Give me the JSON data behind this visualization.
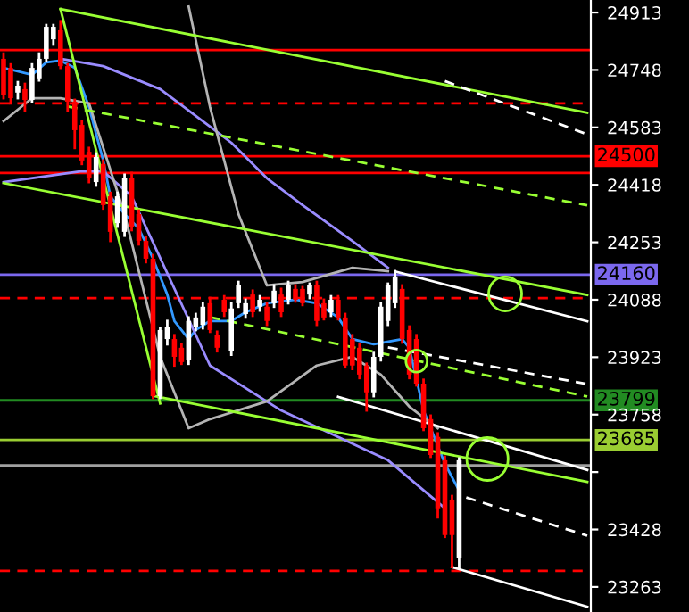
{
  "chart_data": {
    "type": "candlestick",
    "categories": [
      null,
      null,
      null,
      null,
      null,
      null,
      null,
      null,
      null,
      null,
      null,
      null,
      null,
      null,
      null,
      null,
      null,
      null,
      null,
      null,
      null,
      null,
      null,
      null,
      null,
      null,
      null,
      null,
      null,
      null,
      null,
      null,
      null,
      null,
      null,
      null,
      null,
      null,
      null,
      null,
      null,
      null,
      null,
      null,
      null,
      null,
      null,
      null,
      null,
      null,
      null,
      null,
      null,
      null,
      null,
      null,
      null,
      null,
      null,
      null,
      null,
      null,
      null,
      null,
      null,
      null,
      null,
      null,
      null,
      null,
      null,
      null,
      null,
      null,
      null,
      null,
      null,
      null,
      null,
      null,
      null,
      null,
      null
    ],
    "ohlc": [
      [
        24780,
        24795,
        24667,
        24677
      ],
      [
        24754,
        24764,
        24652,
        24667
      ],
      [
        24683,
        24713,
        24667,
        24703
      ],
      [
        24693,
        24708,
        24631,
        24662
      ],
      [
        24662,
        24764,
        24657,
        24754
      ],
      [
        24724,
        24795,
        24718,
        24780
      ],
      [
        24780,
        24877,
        24775,
        24872
      ],
      [
        24836,
        24877,
        24821,
        24872
      ],
      [
        24862,
        24888,
        24754,
        24759
      ],
      [
        24759,
        24764,
        24631,
        24657
      ],
      [
        24657,
        24662,
        24524,
        24575
      ],
      [
        24590,
        24600,
        24478,
        24488
      ],
      [
        24513,
        24524,
        24426,
        24437
      ],
      [
        24426,
        24508,
        24416,
        24498
      ],
      [
        24478,
        24488,
        24350,
        24360
      ],
      [
        24385,
        24395,
        24257,
        24283
      ],
      [
        24308,
        24395,
        24298,
        24385
      ],
      [
        24283,
        24447,
        24272,
        24437
      ],
      [
        24437,
        24452,
        24288,
        24298
      ],
      [
        24334,
        24344,
        24247,
        24257
      ],
      [
        24257,
        24267,
        24196,
        24206
      ],
      [
        24206,
        24216,
        23806,
        23811
      ],
      [
        23811,
        24006,
        23806,
        24001
      ],
      [
        23975,
        24027,
        23960,
        24011
      ],
      [
        23975,
        23986,
        23899,
        23924
      ],
      [
        23950,
        23960,
        23904,
        23909
      ],
      [
        23914,
        24037,
        23904,
        24027
      ],
      [
        24011,
        24047,
        24001,
        24037
      ],
      [
        24016,
        24078,
        24006,
        24068
      ],
      [
        24078,
        24093,
        23996,
        24001
      ],
      [
        23986,
        23996,
        23940,
        23950
      ],
      [
        24088,
        24098,
        24042,
        24052
      ],
      [
        23940,
        24078,
        23930,
        24063
      ],
      [
        24078,
        24139,
        24068,
        24129
      ],
      [
        24047,
        24088,
        24037,
        24078
      ],
      [
        24103,
        24114,
        24042,
        24052
      ],
      [
        24068,
        24098,
        24057,
        24088
      ],
      [
        24068,
        24078,
        24016,
        24027
      ],
      [
        24078,
        24129,
        24068,
        24114
      ],
      [
        24103,
        24119,
        24042,
        24052
      ],
      [
        24088,
        24139,
        24078,
        24129
      ],
      [
        24119,
        24129,
        24083,
        24088
      ],
      [
        24119,
        24124,
        24073,
        24078
      ],
      [
        24103,
        24134,
        24093,
        24129
      ],
      [
        24129,
        24139,
        24016,
        24027
      ],
      [
        24078,
        24088,
        24032,
        24037
      ],
      [
        24052,
        24098,
        24042,
        24088
      ],
      [
        24088,
        24098,
        24032,
        24037
      ],
      [
        24037,
        24047,
        23894,
        23899
      ],
      [
        23975,
        23986,
        23889,
        23899
      ],
      [
        23950,
        23960,
        23863,
        23873
      ],
      [
        23899,
        23904,
        23770,
        23822
      ],
      [
        23822,
        23935,
        23811,
        23924
      ],
      [
        23924,
        24078,
        23914,
        24068
      ],
      [
        24027,
        24134,
        24016,
        24129
      ],
      [
        24078,
        24170,
        24068,
        24155
      ],
      [
        24119,
        24129,
        23965,
        23975
      ],
      [
        24001,
        24011,
        23863,
        23873
      ],
      [
        23975,
        23986,
        23842,
        23847
      ],
      [
        23847,
        23858,
        23714,
        23719
      ],
      [
        23745,
        23755,
        23637,
        23642
      ],
      [
        23694,
        23704,
        23463,
        23489
      ],
      [
        23627,
        23637,
        23407,
        23412
      ],
      [
        23514,
        23524,
        23320,
        23412
      ],
      [
        23345,
        23632,
        23320,
        23627
      ],
      null,
      null,
      null,
      null,
      null,
      null,
      null,
      null,
      null,
      null,
      null,
      null,
      null,
      null,
      null,
      null,
      null,
      null
    ],
    "colors": [
      "#ff0000",
      "#ff0000",
      "#ffffff",
      "#ff0000",
      "#ffffff",
      "#ffffff",
      "#ffffff",
      "#ffffff",
      "#ff0000",
      "#ff0000",
      "#ff0000",
      "#ff0000",
      "#ff0000",
      "#ffffff",
      "#ff0000",
      "#ff0000",
      "#ffffff",
      "#ffffff",
      "#ff0000",
      "#ff0000",
      "#ff0000",
      "#ff0000",
      "#ffffff",
      "#ffffff",
      "#ff0000",
      "#ff0000",
      "#ffffff",
      "#ffffff",
      "#ffffff",
      "#ff0000",
      "#ff0000",
      "#ff0000",
      "#ffffff",
      "#ffffff",
      "#ffffff",
      "#ff0000",
      "#ffffff",
      "#ff0000",
      "#ffffff",
      "#ff0000",
      "#ffffff",
      "#ff0000",
      "#ff0000",
      "#ffffff",
      "#ff0000",
      "#ff0000",
      "#ffffff",
      "#ff0000",
      "#ff0000",
      "#ff0000",
      "#ff0000",
      "#ff0000",
      "#ffffff",
      "#ffffff",
      "#ffffff",
      "#ffffff",
      "#ff0000",
      "#ff0000",
      "#ff0000",
      "#ff0000",
      "#ff0000",
      "#ff0000",
      "#ff0000",
      "#ff0000",
      "#ffffff",
      null,
      null,
      null,
      null,
      null,
      null,
      null,
      null,
      null,
      null,
      null,
      null,
      null,
      null,
      null,
      null,
      null,
      null
    ],
    "series": [
      {
        "type": "line",
        "color": "#3399ff",
        "values": [
          24754,
          null,
          null,
          null,
          24734,
          null,
          24770,
          null,
          24775,
          null,
          24754,
          null,
          24642,
          null,
          24488,
          24385,
          null,
          24334,
          null,
          24293,
          null,
          24206,
          null,
          24103,
          24027,
          null,
          23975,
          24001,
          null,
          24027,
          null,
          null,
          24027,
          null,
          24052,
          null,
          null,
          24078,
          null,
          null,
          null,
          24088,
          null,
          null,
          24078,
          null,
          null,
          24037,
          null,
          23975,
          null,
          null,
          23960,
          null,
          null,
          null,
          23975,
          23950,
          null,
          23770,
          null,
          null,
          23617,
          null,
          23540,
          null,
          null,
          null,
          null,
          null,
          null,
          null,
          null,
          null,
          null,
          null,
          null,
          null,
          null,
          null,
          null,
          null,
          null
        ]
      },
      {
        "type": "line",
        "color": "#9a8cff",
        "values": [
          null,
          null,
          null,
          null,
          null,
          null,
          null,
          null,
          24780,
          null,
          null,
          null,
          null,
          null,
          24759,
          null,
          null,
          null,
          null,
          null,
          null,
          null,
          24693,
          null,
          null,
          null,
          null,
          24616,
          null,
          null,
          null,
          null,
          24539,
          null,
          null,
          null,
          null,
          24437,
          null,
          null,
          null,
          null,
          24360,
          null,
          null,
          null,
          null,
          null,
          null,
          24257,
          null,
          null,
          null,
          null,
          24180,
          null,
          null,
          null,
          null,
          null,
          null,
          null,
          null,
          null,
          null,
          null,
          null,
          null,
          null,
          null,
          null,
          null,
          null,
          null,
          null,
          null,
          null,
          null,
          null,
          null,
          null,
          null,
          null
        ]
      },
      {
        "type": "line",
        "color": "#9a8cff",
        "values": [
          24426,
          null,
          null,
          null,
          null,
          null,
          null,
          null,
          null,
          null,
          null,
          24457,
          null,
          null,
          24457,
          null,
          null,
          null,
          24385,
          null,
          null,
          null,
          null,
          null,
          null,
          null,
          null,
          null,
          null,
          23899,
          null,
          null,
          null,
          null,
          null,
          null,
          null,
          null,
          null,
          23770,
          null,
          null,
          null,
          null,
          null,
          null,
          null,
          null,
          null,
          null,
          null,
          null,
          null,
          null,
          23627,
          null,
          null,
          null,
          null,
          null,
          null,
          null,
          23489,
          null,
          null,
          null,
          null,
          null,
          null,
          null,
          null,
          null,
          null,
          null,
          null,
          null,
          null,
          null,
          null,
          null,
          null,
          null,
          null
        ]
      },
      {
        "type": "line",
        "color": "#b4b4b4",
        "values": [
          null,
          null,
          null,
          null,
          null,
          null,
          null,
          null,
          null,
          null,
          null,
          null,
          null,
          null,
          null,
          null,
          null,
          null,
          null,
          null,
          null,
          null,
          null,
          null,
          null,
          null,
          24930,
          null,
          null,
          24642,
          null,
          null,
          null,
          24334,
          null,
          null,
          null,
          24129,
          null,
          null,
          null,
          null,
          24139,
          null,
          null,
          null,
          null,
          null,
          null,
          24180,
          null,
          null,
          null,
          null,
          24170,
          null,
          null,
          null,
          null,
          null,
          null,
          null,
          null,
          null,
          null,
          null,
          null,
          null,
          null,
          null,
          null,
          null,
          null,
          null,
          null,
          null,
          null,
          null,
          null,
          null,
          null,
          null,
          null
        ]
      },
      {
        "type": "line",
        "color": "#b4b4b4",
        "values": [
          24601,
          null,
          null,
          null,
          24667,
          null,
          null,
          null,
          24667,
          null,
          null,
          null,
          24652,
          null,
          null,
          null,
          null,
          24334,
          null,
          null,
          null,
          null,
          23924,
          null,
          null,
          null,
          23719,
          null,
          null,
          23745,
          null,
          null,
          null,
          null,
          null,
          null,
          null,
          23796,
          null,
          null,
          null,
          null,
          null,
          null,
          23899,
          null,
          null,
          null,
          null,
          23924,
          null,
          null,
          null,
          23873,
          null,
          null,
          null,
          23781,
          null,
          null,
          null,
          23719,
          null,
          null,
          null,
          null,
          null,
          null,
          null,
          null,
          null,
          null,
          null,
          null,
          null,
          null,
          null,
          null,
          null,
          null,
          null,
          null,
          null
        ]
      },
      {
        "type": "line",
        "color": "#99ff33",
        "values": [
          null,
          null,
          null,
          null,
          null,
          null,
          null,
          null,
          24923,
          null,
          null,
          null,
          null,
          null,
          null,
          null,
          null,
          null,
          null,
          null,
          null,
          null,
          null,
          null,
          null,
          null,
          null,
          null,
          null,
          null,
          null,
          null,
          null,
          null,
          null,
          null,
          null,
          null,
          null,
          null,
          null,
          null,
          null,
          null,
          null,
          null,
          null,
          null,
          null,
          null,
          null,
          null,
          null,
          null,
          null,
          null,
          null,
          null,
          null,
          null,
          null,
          null,
          null,
          null,
          null,
          null,
          null,
          null,
          null,
          null,
          null,
          null,
          null,
          null,
          null,
          null,
          null,
          null,
          null,
          null,
          null,
          null,
          24625
        ]
      },
      {
        "type": "line",
        "color": "#99ff33",
        "values": [
          24423,
          null,
          null,
          null,
          null,
          null,
          null,
          null,
          null,
          null,
          null,
          null,
          null,
          null,
          null,
          null,
          null,
          null,
          null,
          null,
          null,
          null,
          null,
          null,
          null,
          null,
          null,
          null,
          null,
          null,
          null,
          null,
          null,
          null,
          null,
          null,
          null,
          null,
          null,
          null,
          null,
          null,
          null,
          null,
          null,
          null,
          null,
          null,
          null,
          null,
          null,
          null,
          null,
          null,
          null,
          null,
          null,
          null,
          null,
          null,
          null,
          null,
          null,
          null,
          null,
          null,
          null,
          null,
          null,
          null,
          null,
          null,
          null,
          null,
          null,
          null,
          null,
          null,
          null,
          null,
          null,
          null,
          24102
        ]
      },
      {
        "type": "line",
        "color": "#99ff33",
        "values": [
          null,
          null,
          null,
          null,
          null,
          null,
          null,
          null,
          null,
          null,
          null,
          null,
          null,
          null,
          null,
          null,
          null,
          null,
          null,
          null,
          null,
          23812,
          null,
          null,
          null,
          null,
          null,
          null,
          null,
          null,
          null,
          null,
          null,
          null,
          null,
          null,
          null,
          null,
          null,
          null,
          null,
          null,
          null,
          null,
          null,
          null,
          null,
          null,
          null,
          null,
          null,
          null,
          null,
          null,
          null,
          null,
          null,
          null,
          null,
          null,
          null,
          null,
          null,
          null,
          null,
          null,
          null,
          null,
          null,
          null,
          null,
          null,
          null,
          null,
          null,
          null,
          null,
          null,
          null,
          null,
          null,
          null,
          23565
        ]
      },
      {
        "type": "line",
        "color": "#99ff33",
        "values": [
          null,
          null,
          null,
          null,
          null,
          null,
          null,
          null,
          24923,
          null,
          null,
          null,
          null,
          null,
          null,
          null,
          null,
          null,
          null,
          null,
          null,
          null,
          23790,
          null,
          null,
          null,
          null,
          null,
          null,
          null,
          null,
          null,
          null,
          null,
          null,
          null,
          null,
          null,
          null,
          null,
          null,
          null,
          null,
          null,
          null,
          null,
          null,
          null,
          null,
          null,
          null,
          null,
          null,
          null,
          null,
          null,
          null,
          null,
          null,
          null,
          null,
          null,
          null,
          null,
          null,
          null,
          null,
          null,
          null,
          null,
          null,
          null,
          null,
          null,
          null,
          null,
          null,
          null,
          null,
          null,
          null,
          null,
          null
        ]
      },
      {
        "type": "line",
        "color": "#99ff33",
        "line_style": "dashed",
        "values": [
          null,
          null,
          null,
          null,
          null,
          null,
          null,
          null,
          null,
          24643,
          null,
          null,
          null,
          null,
          null,
          null,
          null,
          null,
          null,
          null,
          null,
          null,
          null,
          null,
          null,
          null,
          null,
          null,
          null,
          null,
          null,
          null,
          null,
          null,
          null,
          null,
          null,
          null,
          null,
          null,
          null,
          null,
          null,
          null,
          null,
          null,
          null,
          null,
          null,
          null,
          null,
          null,
          null,
          null,
          null,
          null,
          null,
          null,
          null,
          null,
          null,
          null,
          null,
          null,
          null,
          null,
          null,
          null,
          null,
          null,
          null,
          null,
          null,
          null,
          null,
          null,
          null,
          null,
          null,
          null,
          null,
          null,
          24359
        ]
      },
      {
        "type": "line",
        "color": "#99ff33",
        "line_style": "dashed",
        "values": [
          null,
          null,
          null,
          null,
          null,
          null,
          null,
          null,
          null,
          null,
          null,
          null,
          null,
          null,
          null,
          null,
          null,
          null,
          null,
          null,
          null,
          null,
          null,
          null,
          null,
          null,
          null,
          null,
          null,
          24038,
          null,
          null,
          null,
          null,
          null,
          null,
          null,
          null,
          null,
          null,
          null,
          null,
          null,
          null,
          null,
          null,
          null,
          null,
          null,
          null,
          null,
          null,
          null,
          null,
          null,
          null,
          null,
          null,
          null,
          null,
          null,
          null,
          null,
          null,
          null,
          null,
          null,
          null,
          null,
          null,
          null,
          null,
          null,
          null,
          null,
          null,
          null,
          null,
          null,
          null,
          null,
          null,
          23810
        ]
      },
      {
        "type": "line",
        "color": "#ffffff",
        "values": [
          null,
          null,
          null,
          null,
          null,
          null,
          null,
          null,
          null,
          null,
          null,
          null,
          null,
          null,
          null,
          null,
          null,
          null,
          null,
          null,
          null,
          null,
          null,
          null,
          null,
          null,
          null,
          null,
          null,
          null,
          null,
          null,
          null,
          null,
          null,
          null,
          null,
          null,
          null,
          null,
          null,
          null,
          null,
          null,
          null,
          null,
          null,
          null,
          null,
          null,
          null,
          null,
          null,
          null,
          null,
          24169,
          null,
          null,
          null,
          null,
          null,
          null,
          null,
          null,
          null,
          null,
          null,
          null,
          null,
          null,
          null,
          null,
          null,
          null,
          null,
          null,
          null,
          null,
          null,
          null,
          null,
          null,
          24026
        ]
      },
      {
        "type": "line",
        "color": "#ffffff",
        "values": [
          null,
          null,
          null,
          null,
          null,
          null,
          null,
          null,
          null,
          null,
          null,
          null,
          null,
          null,
          null,
          null,
          null,
          null,
          null,
          null,
          null,
          null,
          null,
          null,
          null,
          null,
          null,
          null,
          null,
          null,
          null,
          null,
          null,
          null,
          null,
          null,
          null,
          null,
          null,
          null,
          null,
          null,
          null,
          null,
          null,
          null,
          null,
          23809,
          null,
          null,
          null,
          null,
          null,
          null,
          null,
          null,
          null,
          null,
          null,
          null,
          null,
          null,
          null,
          null,
          null,
          null,
          null,
          null,
          null,
          null,
          null,
          null,
          null,
          null,
          null,
          null,
          null,
          null,
          null,
          null,
          null,
          null,
          23599
        ]
      },
      {
        "type": "line",
        "color": "#ffffff",
        "values": [
          null,
          null,
          null,
          null,
          null,
          null,
          null,
          null,
          null,
          null,
          null,
          null,
          null,
          null,
          null,
          null,
          null,
          null,
          null,
          null,
          null,
          null,
          null,
          null,
          null,
          null,
          null,
          null,
          null,
          null,
          null,
          null,
          null,
          null,
          null,
          null,
          null,
          null,
          null,
          null,
          null,
          null,
          null,
          null,
          null,
          null,
          null,
          null,
          null,
          null,
          null,
          null,
          null,
          null,
          null,
          null,
          null,
          null,
          null,
          null,
          null,
          null,
          null,
          23320,
          null,
          null,
          null,
          null,
          null,
          null,
          null,
          null,
          null,
          null,
          null,
          null,
          null,
          null,
          null,
          null,
          null,
          null,
          23206
        ]
      },
      {
        "type": "line",
        "color": "#ffffff",
        "line_style": "dashed",
        "values": [
          null,
          null,
          null,
          null,
          null,
          null,
          null,
          null,
          null,
          null,
          null,
          null,
          null,
          null,
          null,
          null,
          null,
          null,
          null,
          null,
          null,
          null,
          null,
          null,
          null,
          null,
          null,
          null,
          null,
          null,
          null,
          null,
          null,
          null,
          null,
          null,
          null,
          null,
          null,
          null,
          null,
          null,
          null,
          null,
          null,
          null,
          null,
          null,
          null,
          null,
          null,
          null,
          null,
          null,
          null,
          null,
          null,
          null,
          null,
          null,
          null,
          null,
          null,
          null,
          null,
          23520,
          null,
          null,
          null,
          null,
          null,
          null,
          null,
          null,
          null,
          null,
          null,
          null,
          null,
          null,
          null,
          null,
          23410
        ]
      },
      {
        "type": "line",
        "color": "#ffffff",
        "line_style": "dashed",
        "values": [
          null,
          null,
          null,
          null,
          null,
          null,
          null,
          null,
          null,
          null,
          null,
          null,
          null,
          null,
          null,
          null,
          null,
          null,
          null,
          null,
          null,
          null,
          null,
          null,
          null,
          null,
          null,
          null,
          null,
          null,
          null,
          null,
          null,
          null,
          null,
          null,
          null,
          null,
          null,
          null,
          null,
          null,
          null,
          null,
          null,
          null,
          null,
          null,
          null,
          null,
          null,
          null,
          null,
          null,
          23951,
          null,
          null,
          null,
          null,
          null,
          null,
          null,
          null,
          null,
          null,
          null,
          null,
          null,
          null,
          null,
          null,
          null,
          null,
          null,
          null,
          null,
          null,
          null,
          null,
          null,
          null,
          null,
          23846
        ]
      },
      {
        "type": "line",
        "color": "#ffffff",
        "line_style": "dashed",
        "values": [
          null,
          null,
          null,
          null,
          null,
          null,
          null,
          null,
          null,
          null,
          null,
          null,
          null,
          null,
          null,
          null,
          null,
          null,
          null,
          null,
          null,
          null,
          null,
          null,
          null,
          null,
          null,
          null,
          null,
          null,
          null,
          null,
          null,
          null,
          null,
          null,
          null,
          null,
          null,
          null,
          null,
          null,
          null,
          null,
          null,
          null,
          null,
          null,
          null,
          null,
          null,
          null,
          null,
          null,
          null,
          null,
          null,
          null,
          null,
          null,
          null,
          null,
          24716,
          null,
          null,
          null,
          null,
          null,
          null,
          null,
          null,
          null,
          null,
          null,
          null,
          null,
          null,
          null,
          null,
          null,
          null,
          null,
          24563
        ]
      }
    ],
    "ref_lines": [
      {
        "axis": "y",
        "value": 24805,
        "color": "#ff0000",
        "line_style": "solid"
      },
      {
        "axis": "y",
        "value": 24652,
        "color": "#ff0000",
        "line_style": "dashed"
      },
      {
        "axis": "y",
        "value": 24500,
        "color": "#ff0000",
        "line_style": "solid",
        "label": "24500"
      },
      {
        "axis": "y",
        "value": 24452,
        "color": "#ff0000",
        "line_style": "solid"
      },
      {
        "axis": "y",
        "value": 24160,
        "color": "#7b68ee",
        "line_style": "solid",
        "label": "24160"
      },
      {
        "axis": "y",
        "value": 24093,
        "color": "#ff0000",
        "line_style": "dashed"
      },
      {
        "axis": "y",
        "value": 23799,
        "color": "#228b22",
        "line_style": "solid",
        "label": "23799"
      },
      {
        "axis": "y",
        "value": 23685,
        "color": "#9acd32",
        "line_style": "solid",
        "label": "23685"
      },
      {
        "axis": "y",
        "value": 23612,
        "color": "#a0a0a0",
        "line_style": "solid"
      },
      {
        "axis": "y",
        "value": 23309,
        "color": "#ff0000",
        "line_style": "dashed"
      }
    ],
    "ylim": [
      23191,
      24949
    ],
    "yticks": [
      24913,
      24748,
      24583,
      24418,
      24253,
      24088,
      23923,
      23758,
      {
        "value": 23593,
        "label": null
      },
      23428,
      23263
    ],
    "tick_labels": "y",
    "grid": false
  }
}
